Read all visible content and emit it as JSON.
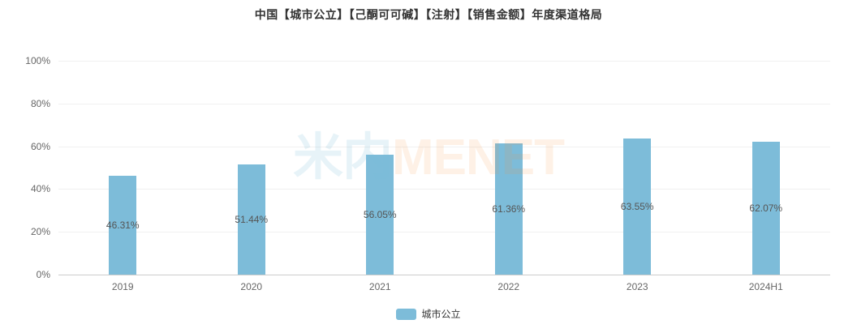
{
  "title": "中国【城市公立】【己酮可可碱】【注射】【销售金额】年度渠道格局",
  "watermark": {
    "cn": "米内",
    "en": "MENET"
  },
  "legend": {
    "label": "城市公立"
  },
  "colors": {
    "bar": "#7dbcd9",
    "grid": "#f0f0f0",
    "axis_line": "#cccccc",
    "axis_text": "#666666",
    "data_label": "#555555",
    "title_text": "#333333",
    "watermark_cn": "rgba(124,189,217,0.18)",
    "watermark_en": "rgba(245,150,60,0.13)"
  },
  "chart_data": {
    "type": "bar",
    "title": "中国【城市公立】【己酮可可碱】【注射】【销售金额】年度渠道格局",
    "categories": [
      "2019",
      "2020",
      "2021",
      "2022",
      "2023",
      "2024H1"
    ],
    "series": [
      {
        "name": "城市公立",
        "values": [
          46.31,
          51.44,
          56.05,
          61.36,
          63.55,
          62.07
        ]
      }
    ],
    "value_labels": [
      "46.31%",
      "51.44%",
      "56.05%",
      "61.36%",
      "63.55%",
      "62.07%"
    ],
    "xlabel": "",
    "ylabel": "",
    "ylim": [
      0,
      100
    ],
    "yticks": [
      "0%",
      "20%",
      "40%",
      "60%",
      "80%",
      "100%"
    ],
    "ytick_values": [
      0,
      20,
      40,
      60,
      80,
      100
    ],
    "grid": true,
    "legend_position": "bottom"
  }
}
